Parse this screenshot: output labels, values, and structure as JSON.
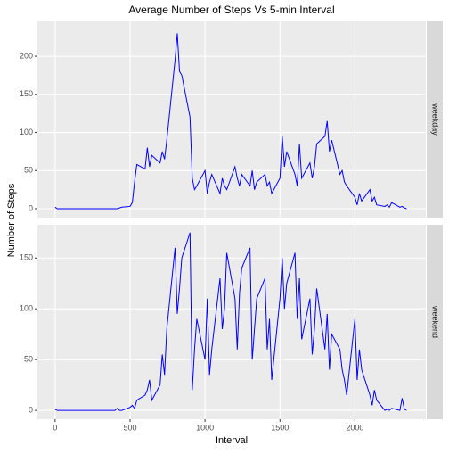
{
  "chart_data": {
    "type": "line",
    "title": "Average Number of Steps Vs 5-min Interval",
    "x_label": "Interval",
    "y_label": "Number of Steps",
    "color": "#0000ff",
    "grid": true,
    "x": [
      0,
      15,
      30,
      45,
      100,
      115,
      130,
      145,
      200,
      215,
      230,
      245,
      300,
      315,
      330,
      345,
      400,
      415,
      430,
      445,
      500,
      515,
      530,
      545,
      600,
      615,
      630,
      645,
      700,
      715,
      730,
      745,
      800,
      815,
      830,
      845,
      900,
      915,
      930,
      945,
      1000,
      1015,
      1030,
      1045,
      1100,
      1115,
      1130,
      1145,
      1200,
      1215,
      1230,
      1245,
      1300,
      1315,
      1330,
      1345,
      1400,
      1415,
      1430,
      1445,
      1500,
      1515,
      1530,
      1545,
      1600,
      1615,
      1630,
      1645,
      1700,
      1715,
      1730,
      1745,
      1800,
      1815,
      1830,
      1845,
      1900,
      1915,
      1930,
      1945,
      2000,
      2015,
      2030,
      2045,
      2100,
      2115,
      2130,
      2145,
      2200,
      2215,
      2230,
      2245,
      2300,
      2315,
      2330,
      2345
    ],
    "xlim": [
      -118,
      2473
    ],
    "xticks": [
      0,
      500,
      1000,
      1500,
      2000
    ],
    "panels": [
      {
        "name": "weekday",
        "ylim": [
          -11.7,
          245.7
        ],
        "yticks": [
          0,
          50,
          100,
          150,
          200
        ],
        "values": [
          2,
          0,
          0,
          0,
          0,
          0,
          0,
          0,
          0,
          0,
          0,
          0,
          0,
          0,
          0,
          0,
          0,
          0,
          1,
          2,
          3,
          8,
          35,
          58,
          52,
          80,
          55,
          70,
          60,
          75,
          65,
          90,
          195,
          230,
          180,
          175,
          120,
          40,
          25,
          30,
          50,
          20,
          35,
          45,
          20,
          40,
          30,
          25,
          55,
          40,
          30,
          45,
          30,
          50,
          25,
          35,
          45,
          30,
          35,
          20,
          40,
          95,
          55,
          75,
          45,
          30,
          85,
          40,
          60,
          40,
          55,
          85,
          95,
          115,
          75,
          90,
          45,
          50,
          35,
          30,
          15,
          5,
          20,
          10,
          25,
          10,
          15,
          5,
          3,
          5,
          2,
          8,
          2,
          3,
          1,
          0
        ]
      },
      {
        "name": "weekend",
        "ylim": [
          -8.7,
          182.7
        ],
        "yticks": [
          0,
          50,
          100,
          150
        ],
        "values": [
          1,
          0,
          0,
          0,
          0,
          0,
          0,
          0,
          0,
          0,
          0,
          0,
          0,
          0,
          0,
          0,
          0,
          2,
          0,
          0,
          3,
          5,
          2,
          10,
          15,
          20,
          30,
          10,
          25,
          55,
          35,
          80,
          160,
          95,
          120,
          150,
          175,
          20,
          60,
          90,
          50,
          110,
          35,
          60,
          130,
          80,
          100,
          155,
          110,
          60,
          115,
          140,
          160,
          50,
          80,
          110,
          130,
          60,
          90,
          30,
          110,
          150,
          100,
          125,
          155,
          90,
          130,
          70,
          110,
          55,
          80,
          120,
          60,
          95,
          40,
          75,
          60,
          40,
          30,
          15,
          90,
          30,
          60,
          40,
          15,
          5,
          20,
          10,
          0,
          1,
          0,
          2,
          0,
          12,
          1,
          0
        ]
      }
    ]
  }
}
